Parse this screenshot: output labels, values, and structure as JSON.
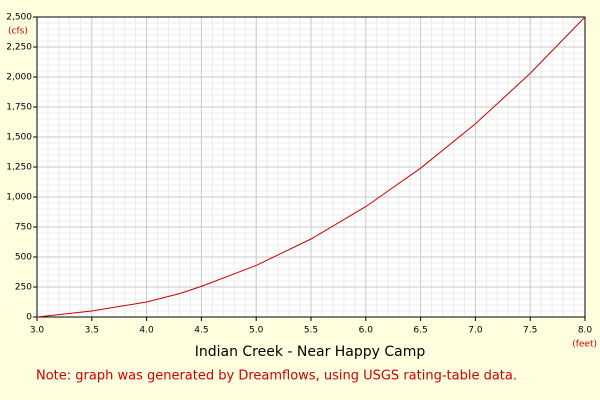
{
  "chart_data": {
    "type": "line",
    "title": "Indian Creek - Near Happy Camp",
    "note": "Note: graph was generated by Dreamflows, using USGS rating-table data.",
    "x_unit": "(feet)",
    "y_unit": "(cfs)",
    "x": [
      3.0,
      3.5,
      4.0,
      4.3,
      4.5,
      5.0,
      5.5,
      6.0,
      6.5,
      7.0,
      7.5,
      8.0
    ],
    "values": [
      0,
      50,
      125,
      195,
      255,
      430,
      650,
      920,
      1240,
      1610,
      2030,
      2500
    ],
    "color": "#cc0000",
    "xlim": [
      3.0,
      8.0
    ],
    "xticks": [
      {
        "value": 3.0,
        "label": "3.0"
      },
      3.5,
      {
        "value": 4.0,
        "label": "4.0"
      },
      4.5,
      {
        "value": 5.0,
        "label": "5.0"
      },
      5.5,
      {
        "value": 6.0,
        "label": "6.0"
      },
      6.5,
      {
        "value": 7.0,
        "label": "7.0"
      },
      7.5,
      {
        "value": 8.0,
        "label": "8.0"
      }
    ],
    "ylim": [
      0,
      2500
    ],
    "yticks": [
      0,
      250,
      500,
      750,
      {
        "value": 1000,
        "label": "1,000"
      },
      {
        "value": 1250,
        "label": "1,250"
      },
      {
        "value": 1500,
        "label": "1,500"
      },
      {
        "value": 1750,
        "label": "1,750"
      },
      {
        "value": 2000,
        "label": "2,000"
      },
      {
        "value": 2250,
        "label": "2,250"
      },
      {
        "value": 2500,
        "label": "2,500"
      }
    ],
    "grid": true,
    "minor_grid": true
  }
}
